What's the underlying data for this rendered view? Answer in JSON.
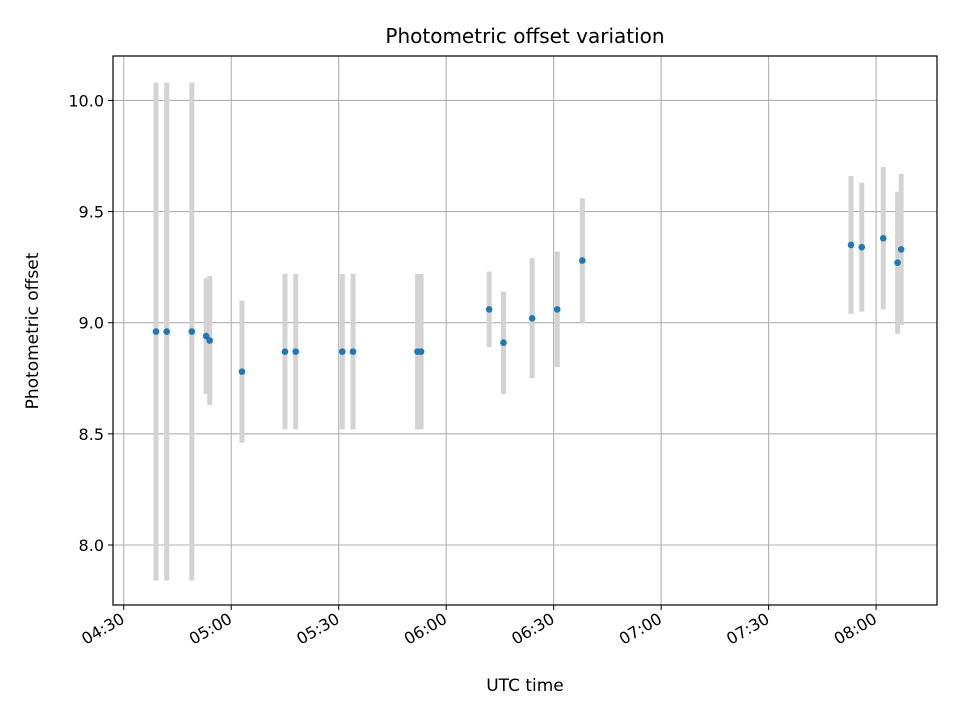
{
  "chart_data": {
    "type": "scatter",
    "title": "Photometric offset variation",
    "xlabel": "UTC time",
    "ylabel": "Photometric offset",
    "x_unit": "HH:MM UTC",
    "xlim": [
      "04:27",
      "08:17"
    ],
    "ylim": [
      7.73,
      10.2
    ],
    "grid": true,
    "xticks": [
      "04:30",
      "05:00",
      "05:30",
      "06:00",
      "06:30",
      "07:00",
      "07:30",
      "08:00"
    ],
    "yticks": [
      8.0,
      8.5,
      9.0,
      9.5,
      10.0
    ],
    "ytick_labels": [
      "8.0",
      "8.5",
      "9.0",
      "9.5",
      "10.0"
    ],
    "colors": {
      "point": "#1f77b4",
      "errorbar": "#d3d3d3",
      "grid": "#b0b0b0"
    },
    "points": [
      {
        "x": "04:39",
        "y": 8.96,
        "err": 1.12
      },
      {
        "x": "04:42",
        "y": 8.96,
        "err": 1.12
      },
      {
        "x": "04:49",
        "y": 8.96,
        "err": 1.12
      },
      {
        "x": "04:53",
        "y": 8.94,
        "err": 0.26
      },
      {
        "x": "04:54",
        "y": 8.92,
        "err": 0.29
      },
      {
        "x": "05:03",
        "y": 8.78,
        "err": 0.32
      },
      {
        "x": "05:15",
        "y": 8.87,
        "err": 0.35
      },
      {
        "x": "05:18",
        "y": 8.87,
        "err": 0.35
      },
      {
        "x": "05:31",
        "y": 8.87,
        "err": 0.35
      },
      {
        "x": "05:34",
        "y": 8.87,
        "err": 0.35
      },
      {
        "x": "05:52",
        "y": 8.87,
        "err": 0.35
      },
      {
        "x": "05:53",
        "y": 8.87,
        "err": 0.35
      },
      {
        "x": "06:12",
        "y": 9.06,
        "err": 0.17
      },
      {
        "x": "06:16",
        "y": 8.91,
        "err": 0.23
      },
      {
        "x": "06:24",
        "y": 9.02,
        "err": 0.27
      },
      {
        "x": "06:31",
        "y": 9.06,
        "err": 0.26
      },
      {
        "x": "06:38",
        "y": 9.28,
        "err": 0.28
      },
      {
        "x": "07:53",
        "y": 9.35,
        "err": 0.31
      },
      {
        "x": "07:56",
        "y": 9.34,
        "err": 0.29
      },
      {
        "x": "08:02",
        "y": 9.38,
        "err": 0.32
      },
      {
        "x": "08:06",
        "y": 9.27,
        "err": 0.32
      },
      {
        "x": "08:07",
        "y": 9.33,
        "err": 0.34
      }
    ]
  }
}
